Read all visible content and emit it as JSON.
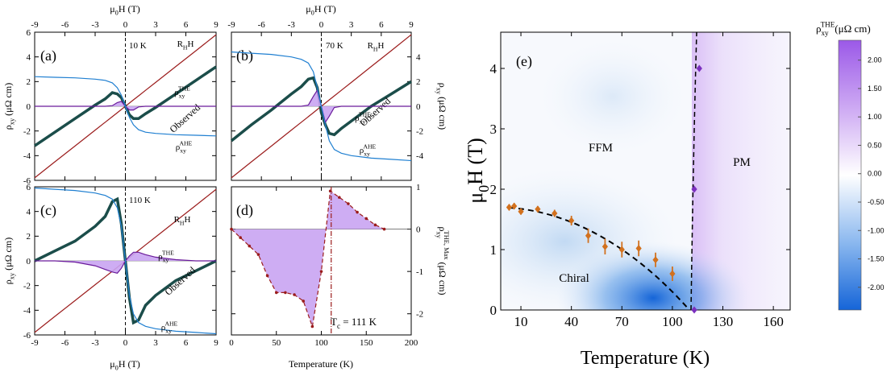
{
  "chart_data": [
    {
      "type": "line",
      "panel_label": "(a)",
      "annotation": "10 K",
      "xlim": [
        -9,
        9
      ],
      "xticks": [
        -9,
        -6,
        -3,
        0,
        3,
        6,
        9
      ],
      "ylim": [
        -6,
        6
      ],
      "yticks": [
        -6,
        -4,
        -2,
        0,
        2,
        4,
        6
      ],
      "x_label": {
        "base": "μ",
        "sub": "0",
        "after": "H (T)"
      },
      "y_label": {
        "base": "ρ",
        "sub": "xy",
        "after": " (μΩ cm)"
      },
      "x": [
        -9,
        -7,
        -5,
        -3,
        -2,
        -1.3,
        -0.8,
        -0.4,
        0,
        0.4,
        0.8,
        1.3,
        2,
        3,
        5,
        7,
        9
      ],
      "series": [
        {
          "name": {
            "base": "R",
            "sub": "H",
            "after": "H"
          },
          "color": "#9b1c1c",
          "values": [
            -5.8,
            -4.5,
            -3.22,
            -1.93,
            -1.29,
            -0.84,
            -0.52,
            -0.26,
            0,
            0.26,
            0.52,
            0.84,
            1.29,
            1.93,
            3.22,
            4.5,
            5.8
          ]
        },
        {
          "name": "Observed",
          "color": "#1b4d4a",
          "values": [
            -3.2,
            -2.1,
            -1.0,
            0.1,
            0.6,
            1.1,
            1.0,
            0.7,
            0,
            -0.7,
            -1.0,
            -1.0,
            -0.6,
            -0.1,
            1.0,
            2.1,
            3.2
          ]
        },
        {
          "name": {
            "base": "ρ",
            "sub": "xy",
            "sup": "THE"
          },
          "color": "#6a1b9a",
          "fill": "#c9a4f2",
          "values": [
            0,
            0,
            0,
            0,
            0,
            0.05,
            0.3,
            0.4,
            0,
            -0.3,
            -0.3,
            -0.05,
            0,
            0,
            0,
            0,
            0
          ]
        },
        {
          "name": {
            "base": "ρ",
            "sub": "xy",
            "sup": "AHE"
          },
          "color": "#1f7fd1",
          "values": [
            2.4,
            2.35,
            2.3,
            2.2,
            2.1,
            1.9,
            1.5,
            0.9,
            0,
            -0.9,
            -1.5,
            -1.9,
            -2.1,
            -2.2,
            -2.3,
            -2.35,
            -2.4
          ]
        }
      ]
    },
    {
      "type": "line",
      "panel_label": "(b)",
      "annotation": "70 K",
      "xlim": [
        -9,
        9
      ],
      "xticks": [
        -9,
        -6,
        -3,
        0,
        3,
        6,
        9
      ],
      "ylim": [
        -6,
        6
      ],
      "yticks": [
        -4,
        -2,
        0,
        2,
        4
      ],
      "x_label": {
        "base": "μ",
        "sub": "0",
        "after": "H (T)"
      },
      "y_label": {
        "base": "ρ",
        "sub": "xy",
        "after": " (μΩ cm)"
      },
      "x": [
        -9,
        -7,
        -5,
        -3,
        -2,
        -1.3,
        -0.8,
        -0.4,
        0,
        0.4,
        0.8,
        1.3,
        2,
        3,
        5,
        7,
        9
      ],
      "series": [
        {
          "name": {
            "base": "R",
            "sub": "H",
            "after": "H"
          },
          "color": "#9b1c1c",
          "values": [
            -5.8,
            -4.5,
            -3.22,
            -1.93,
            -1.29,
            -0.84,
            -0.52,
            -0.26,
            0,
            0.26,
            0.52,
            0.84,
            1.29,
            1.93,
            3.22,
            4.5,
            5.8
          ]
        },
        {
          "name": "Observed",
          "color": "#1b4d4a",
          "values": [
            -2.8,
            -1.5,
            -0.3,
            1.0,
            1.6,
            2.2,
            2.3,
            1.5,
            -0.5,
            -1.5,
            -2.2,
            -2.3,
            -1.8,
            -1.2,
            0.0,
            1.0,
            2.0
          ]
        },
        {
          "name": {
            "base": "ρ",
            "sub": "xy",
            "sup": "THE"
          },
          "color": "#6a1b9a",
          "fill": "#c9a4f2",
          "values": [
            0,
            0,
            0,
            0,
            0,
            0.1,
            0.8,
            1.3,
            0,
            -1.3,
            -0.8,
            -0.1,
            0,
            0,
            0,
            0,
            0
          ]
        },
        {
          "name": {
            "base": "ρ",
            "sub": "xy",
            "sup": "AHE"
          },
          "color": "#1f7fd1",
          "values": [
            4.4,
            4.3,
            4.2,
            4.0,
            3.8,
            3.5,
            2.8,
            1.5,
            0,
            -1.5,
            -2.8,
            -3.5,
            -3.8,
            -4.0,
            -4.2,
            -4.3,
            -4.4
          ]
        }
      ]
    },
    {
      "type": "line",
      "panel_label": "(c)",
      "annotation": "110 K",
      "xlim": [
        -9,
        9
      ],
      "xticks": [
        -9,
        -6,
        -3,
        0,
        3,
        6,
        9
      ],
      "ylim": [
        -6,
        6
      ],
      "yticks": [
        -6,
        -4,
        -2,
        0,
        2,
        4,
        6
      ],
      "x_label": {
        "base": "μ",
        "sub": "0",
        "after": "H (T)"
      },
      "y_label": {
        "base": "ρ",
        "sub": "xy",
        "after": " (μΩ cm)"
      },
      "x": [
        -9,
        -7,
        -5,
        -3,
        -2,
        -1.3,
        -0.8,
        -0.4,
        0,
        0.4,
        0.8,
        1.3,
        2,
        3,
        5,
        7,
        9
      ],
      "series": [
        {
          "name": {
            "base": "R",
            "sub": "H",
            "after": "H"
          },
          "color": "#9b1c1c",
          "values": [
            -5.8,
            -4.5,
            -3.22,
            -1.93,
            -1.29,
            -0.84,
            -0.52,
            -0.26,
            0,
            0.26,
            0.52,
            0.84,
            1.29,
            1.93,
            3.22,
            4.5,
            5.8
          ]
        },
        {
          "name": "Observed",
          "color": "#1b4d4a",
          "values": [
            0,
            0.8,
            1.6,
            2.8,
            3.6,
            4.8,
            5.0,
            3.0,
            0,
            -3.0,
            -5.0,
            -4.8,
            -3.6,
            -2.8,
            -1.6,
            -0.8,
            0
          ]
        },
        {
          "name": {
            "base": "ρ",
            "sub": "xy",
            "sup": "THE"
          },
          "color": "#6a1b9a",
          "fill": "#c9a4f2",
          "values": [
            0,
            0,
            -0.1,
            -0.4,
            -0.7,
            -0.9,
            -1.0,
            -0.6,
            0,
            0.4,
            0.7,
            0.7,
            0.5,
            0.3,
            0.1,
            0,
            0
          ]
        },
        {
          "name": {
            "base": "ρ",
            "sub": "xy",
            "sup": "AHE"
          },
          "color": "#1f7fd1",
          "values": [
            5.9,
            5.8,
            5.7,
            5.5,
            5.3,
            5.0,
            4.3,
            2.8,
            0,
            -2.8,
            -4.3,
            -5.0,
            -5.3,
            -5.5,
            -5.7,
            -5.8,
            -5.9
          ]
        }
      ]
    },
    {
      "type": "area",
      "panel_label": "(d)",
      "xlim": [
        0,
        200
      ],
      "xticks": [
        0,
        50,
        100,
        150,
        200
      ],
      "y2lim": [
        -2.5,
        1
      ],
      "y2ticks": [
        -2,
        -1,
        0,
        1
      ],
      "x_label": "Temperature (K)",
      "y2_label": {
        "base": "ρ",
        "sub": "xy",
        "sup": "THE, Max",
        "after": " (μΩ cm)"
      },
      "tc": 111,
      "tc_label": {
        "base": "T",
        "sub": "c",
        "after": " = 111 K"
      },
      "x": [
        0,
        10,
        20,
        30,
        40,
        50,
        60,
        70,
        80,
        90,
        100,
        110,
        120,
        130,
        140,
        150,
        160,
        170
      ],
      "series": [
        {
          "axis": "y2",
          "color": "#9b1c1c",
          "fill": "#c9a4f2",
          "values": [
            0,
            -0.2,
            -0.4,
            -0.6,
            -1.1,
            -1.5,
            -1.5,
            -1.55,
            -1.7,
            -2.3,
            -1.0,
            0.9,
            0.75,
            0.6,
            0.4,
            0.25,
            0.1,
            0
          ]
        }
      ]
    },
    {
      "type": "scatter",
      "panel_label": "(e)",
      "xlim": [
        -2,
        170
      ],
      "xticks": [
        10,
        40,
        70,
        100,
        130,
        160
      ],
      "ylim": [
        0,
        4.6
      ],
      "yticks": [
        0,
        1,
        2,
        3,
        4
      ],
      "x_label": "Temperature (K)",
      "y_label": {
        "base": "μ",
        "sub": "0",
        "after": "H (T)"
      },
      "region_labels": [
        "FFM",
        "PM",
        "Chiral"
      ],
      "series": [
        {
          "color": "#d2711e",
          "x": [
            3,
            6,
            10,
            20,
            30,
            40,
            50,
            60,
            70,
            80,
            90,
            100
          ],
          "values": [
            1.7,
            1.72,
            1.63,
            1.67,
            1.6,
            1.48,
            1.23,
            1.05,
            1.0,
            1.02,
            0.83,
            0.6
          ],
          "errors": [
            0.05,
            0.05,
            0.05,
            0.05,
            0.06,
            0.08,
            0.12,
            0.13,
            0.13,
            0.13,
            0.12,
            0.12
          ]
        },
        {
          "color": "#7b2fbe",
          "x": [
            113,
            113,
            116
          ],
          "values": [
            0,
            2,
            4
          ]
        }
      ]
    },
    {
      "type": "colorbar",
      "title": {
        "base": "ρ",
        "sub": "xy",
        "sup": "THE",
        "after": "(μΩ cm)"
      },
      "ylim": [
        -2.4,
        2.35
      ],
      "yticks": [
        {
          "value": 2,
          "label": "2.00"
        },
        {
          "value": 1.5,
          "label": "1.50"
        },
        {
          "value": 1,
          "label": "1.00"
        },
        {
          "value": 0.5,
          "label": "0.50"
        },
        {
          "value": 0,
          "label": "0.00"
        },
        {
          "value": -0.5,
          "label": "-0.50"
        },
        {
          "value": -1,
          "label": "-1.00"
        },
        {
          "value": -1.5,
          "label": "-1.50"
        },
        {
          "value": -2,
          "label": "-2.00"
        }
      ]
    }
  ]
}
